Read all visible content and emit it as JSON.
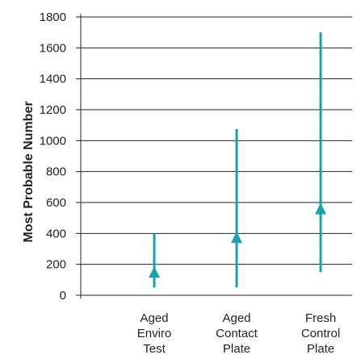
{
  "chart_data": {
    "type": "range",
    "title": "",
    "xlabel": "",
    "ylabel": "Most Probable Number",
    "ylim": [
      0,
      1800
    ],
    "yticks": [
      0,
      200,
      400,
      600,
      800,
      1000,
      1200,
      1400,
      1600,
      1800
    ],
    "ytick_labels": [
      "0",
      "200",
      "400",
      "600",
      "800",
      "1000",
      "1200",
      "1400",
      "1600",
      "1800"
    ],
    "grid": true,
    "categories": [
      {
        "lines": [
          "Aged",
          "Enviro",
          "Test"
        ],
        "low": 50,
        "high": 400,
        "estimate": 145
      },
      {
        "lines": [
          "Aged",
          "Contact",
          "Plate"
        ],
        "low": 50,
        "high": 1075,
        "estimate": 370
      },
      {
        "lines": [
          "Fresh",
          "Control",
          "Plate"
        ],
        "low": 150,
        "high": 1700,
        "estimate": 555
      }
    ],
    "colors": {
      "series": "#17a2b2",
      "grid": "#222222",
      "text": "#222222"
    }
  }
}
